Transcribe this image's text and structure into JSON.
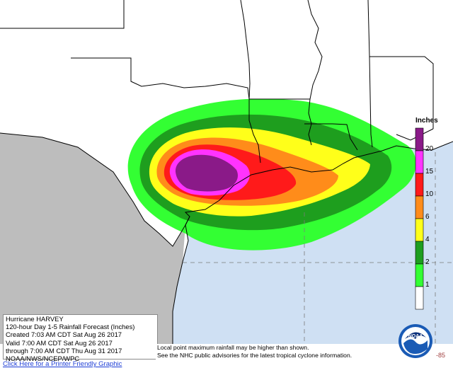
{
  "legend": {
    "title": "Inches",
    "items": [
      {
        "label": "20",
        "color": "#8a1a88"
      },
      {
        "label": "15",
        "color": "#ff33ff"
      },
      {
        "label": "10",
        "color": "#ff1a1a"
      },
      {
        "label": "6",
        "color": "#ff8c1a"
      },
      {
        "label": "4",
        "color": "#ffff1a"
      },
      {
        "label": "2",
        "color": "#1e9e1e"
      },
      {
        "label": "1",
        "color": "#33ff33"
      },
      {
        "label": "",
        "color": "#ffffff"
      }
    ]
  },
  "info": {
    "line1": "Hurricane HARVEY",
    "line2": "120-hour Day 1-5 Rainfall Forecast (Inches)",
    "line3": "Created 7:03 AM CDT Sat Aug 26 2017",
    "line4": "Valid 7:00 AM CDT Sat Aug 26 2017",
    "line5": "through 7:00 AM CDT Thu Aug 31 2017",
    "line6": "NOAA/NWS/NCEP/WPC"
  },
  "disclaimer": {
    "line1": "Local point maximum rainfall may be higher than shown.",
    "line2": "See the NHC public advisories for the latest tropical cyclone information."
  },
  "longitude_label": "-85",
  "logo": {
    "text": "NOAA"
  },
  "print_link": "Click Here for a Printer Friendly Graphic",
  "colors": {
    "land": "#ffffff",
    "mexico": "#bdbdbd",
    "gulf": "#cfe0f3",
    "border": "#000000"
  }
}
